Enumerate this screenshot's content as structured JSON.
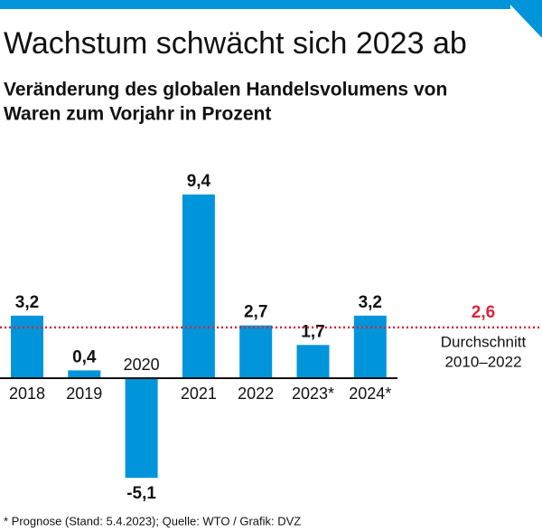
{
  "chart_data": {
    "type": "bar",
    "title": "Wachstum schwächt sich 2023 ab",
    "subtitle": [
      "Veränderung des globalen Handelsvolumens von",
      "Waren zum Vorjahr in Prozent"
    ],
    "categories": [
      "2018",
      "2019",
      "2020",
      "2021",
      "2022",
      "2023*",
      "2024*"
    ],
    "values": [
      3.2,
      0.4,
      -5.1,
      9.4,
      2.7,
      1.7,
      3.2
    ],
    "value_labels": [
      "3,2",
      "0,4",
      "-5,1",
      "9,4",
      "2,7",
      "1,7",
      "3,2"
    ],
    "color": "#0095db",
    "ylim": [
      -6,
      10
    ],
    "average": {
      "value": 2.6,
      "label": "2,6",
      "color": "#d7263d",
      "text": [
        "Durchschnitt",
        "2010–2022"
      ]
    },
    "footnote": "* Prognose (Stand: 5.4.2023); Quelle: WTO / Grafik: DVZ"
  }
}
